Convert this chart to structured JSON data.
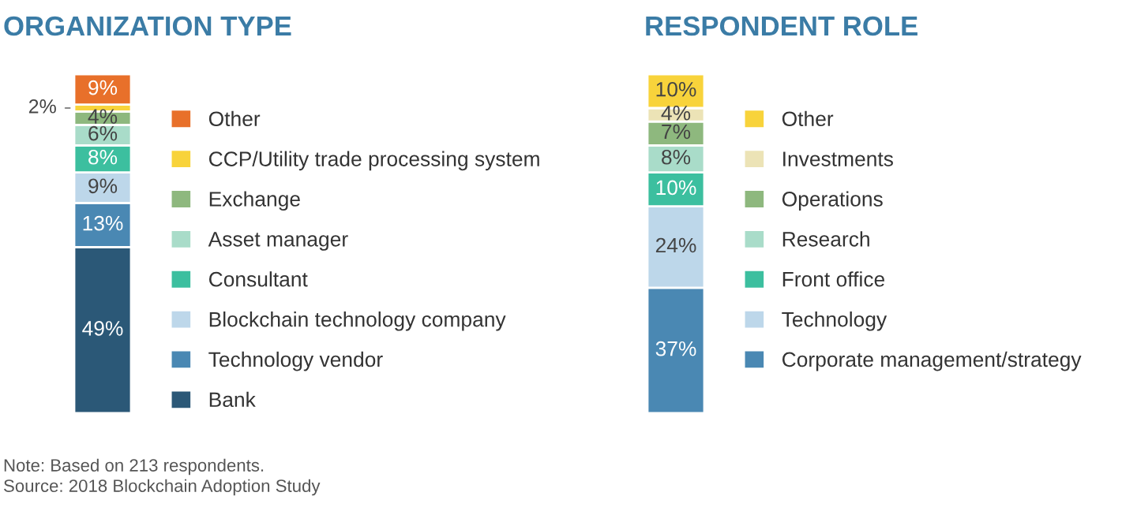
{
  "chart_data": [
    {
      "type": "bar",
      "title": "ORGANIZATION TYPE",
      "stacked": true,
      "categories": [
        null
      ],
      "legend": "right",
      "series": [
        {
          "name": "Bank",
          "color": "#2b5877",
          "values": [
            49
          ],
          "value_labels": [
            "49%"
          ]
        },
        {
          "name": "Technology vendor",
          "color": "#4a88b3",
          "values": [
            13
          ],
          "value_labels": [
            "13%"
          ]
        },
        {
          "name": "Blockchain technology company",
          "color": "#bdd7ea",
          "values": [
            9
          ],
          "value_labels": [
            "9%"
          ]
        },
        {
          "name": "Consultant",
          "color": "#3cbf9f",
          "values": [
            8
          ],
          "value_labels": [
            "8%"
          ]
        },
        {
          "name": "Asset manager",
          "color": "#a9dcc9",
          "values": [
            6
          ],
          "value_labels": [
            "6%"
          ]
        },
        {
          "name": "Exchange",
          "color": "#8eb87e",
          "values": [
            4
          ],
          "value_labels": [
            "4%"
          ]
        },
        {
          "name": "CCP/Utility trade processing system",
          "color": "#f8d33b",
          "values": [
            2
          ],
          "value_labels": [
            "2%"
          ]
        },
        {
          "name": "Other",
          "color": "#e8702a",
          "values": [
            9
          ],
          "value_labels": [
            "9%"
          ]
        }
      ],
      "annotations": [
        "Note: Based on 213 respondents.",
        "Source: 2018 Blockchain Adoption Study"
      ]
    },
    {
      "type": "bar",
      "title": "RESPONDENT ROLE",
      "stacked": true,
      "categories": [
        null
      ],
      "legend": "right",
      "series": [
        {
          "name": "Corporate management/strategy",
          "color": "#4a88b3",
          "values": [
            37
          ],
          "value_labels": [
            "37%"
          ]
        },
        {
          "name": "Technology",
          "color": "#bdd7ea",
          "values": [
            24
          ],
          "value_labels": [
            "24%"
          ]
        },
        {
          "name": "Front office",
          "color": "#3cbf9f",
          "values": [
            10
          ],
          "value_labels": [
            "10%"
          ]
        },
        {
          "name": "Research",
          "color": "#a9dcc9",
          "values": [
            8
          ],
          "value_labels": [
            "8%"
          ]
        },
        {
          "name": "Operations",
          "color": "#8eb87e",
          "values": [
            7
          ],
          "value_labels": [
            "7%"
          ]
        },
        {
          "name": "Investments",
          "color": "#ece3b6",
          "values": [
            4
          ],
          "value_labels": [
            "4%"
          ]
        },
        {
          "name": "Other",
          "color": "#f8d33b",
          "values": [
            10
          ],
          "value_labels": [
            "10%"
          ]
        }
      ]
    }
  ]
}
